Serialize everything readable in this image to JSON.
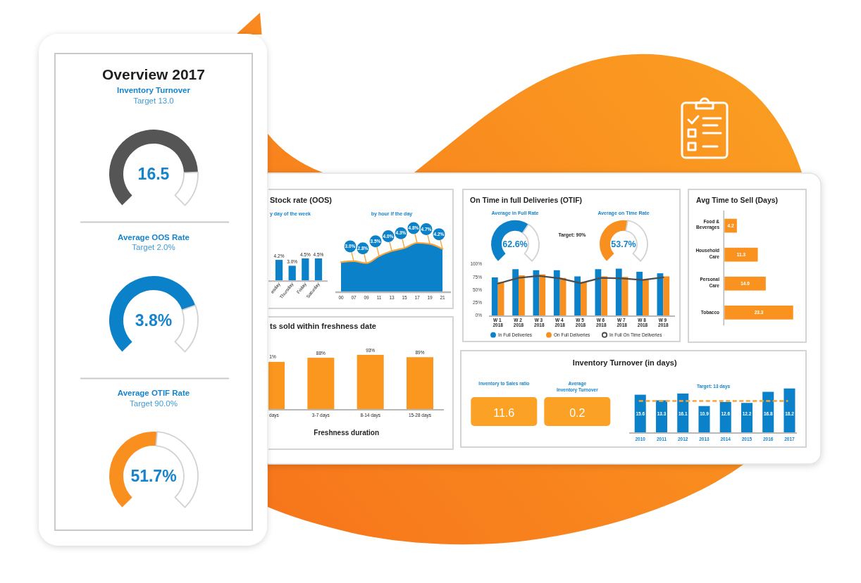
{
  "chart_data": [
    {
      "type": "other",
      "title": "Overview 2017"
    },
    {
      "type": "donut",
      "title": "Inventory Turnover",
      "subtitle": "Target 13.0",
      "categories": [
        null,
        null
      ],
      "values": [
        82.5,
        17.5
      ],
      "colors": [
        "#555555",
        "#d2d2d2"
      ],
      "annotations": [
        "16.5"
      ]
    },
    {
      "type": "donut",
      "title": "Average OOS Rate",
      "subtitle": "Target 2.0%",
      "categories": [
        null,
        null
      ],
      "values": [
        76,
        24
      ],
      "colors": [
        "#0b81c9",
        "#d2d2d2"
      ],
      "annotations": [
        "3.8%"
      ]
    },
    {
      "type": "donut",
      "title": "Average OTIF Rate",
      "subtitle": "Target 90.0%",
      "categories": [
        null,
        null
      ],
      "values": [
        51.7,
        48.3
      ],
      "colors": [
        "#f98f1f",
        "#d2d2d2"
      ],
      "annotations": [
        "51.7%"
      ]
    },
    {
      "type": "bar",
      "title": "Stock rate (OOS)",
      "subtitle": "y day of the week",
      "categories": [
        "esday",
        "Thursday",
        "Friday",
        "Saturday"
      ],
      "values": [
        4.2,
        3.0,
        4.5,
        4.5
      ],
      "value_labels": [
        "4.2%",
        "3.0%",
        "4.5%",
        "4.5%"
      ],
      "color": "#0b81c9"
    },
    {
      "type": "area",
      "title": "by hour if the day",
      "categories": [
        "00",
        "07",
        "09",
        "11",
        "13",
        "15",
        "17",
        "19",
        "21"
      ],
      "series": [
        {
          "type": "area",
          "color": "#0b81c9",
          "values": [
            2.9,
            3.0,
            2.8,
            3.5,
            4.0,
            4.3,
            4.8,
            4.7,
            4.2
          ]
        },
        {
          "type": "line",
          "color": "#f9a43a",
          "values": [
            2.9,
            3.0,
            2.8,
            3.5,
            4.0,
            4.3,
            4.8,
            4.7,
            4.2
          ],
          "value_labels": [
            null,
            "3.0%",
            "2.8%",
            "3.5%",
            "4.0%",
            "4.3%",
            "4.8%",
            "4.7%",
            "4.2%"
          ]
        }
      ]
    },
    {
      "type": "donut",
      "title": "On Time in full Deliveries (OTIF)",
      "subtitle": "Average in Full Rate",
      "categories": [
        null,
        null
      ],
      "values": [
        62.6,
        37.4
      ],
      "colors": [
        "#0b81c9",
        "#d2d2d2"
      ],
      "annotations": [
        "62.6%",
        "Target: 90%"
      ]
    },
    {
      "type": "donut",
      "subtitle": "Average on Time Rate",
      "categories": [
        null,
        null
      ],
      "values": [
        53.7,
        46.3
      ],
      "colors": [
        "#f98f1f",
        "#d2d2d2"
      ],
      "annotations": [
        "53.7%"
      ]
    },
    {
      "type": "bar",
      "categories": [
        "W 1 2018",
        "W 2 2018",
        "W 3 2018",
        "W 4 2018",
        "W 5 2018",
        "W 6 2018",
        "W 7 2018",
        "W 8 2018",
        "W 9 2018"
      ],
      "series": [
        {
          "name": "In Full Deliveries",
          "color": "#0b81c9",
          "values": [
            74,
            90,
            88,
            88,
            76,
            90,
            91,
            85,
            82
          ]
        },
        {
          "name": "On Full Deliveries",
          "color": "#f98f1f",
          "values": [
            65,
            78,
            80,
            73,
            65,
            76,
            75,
            70,
            76
          ]
        },
        {
          "name": "In Full On Time Deliveries",
          "type": "line",
          "color": "#4d4d4d",
          "values": [
            62,
            73,
            77,
            72,
            63,
            73,
            72,
            69,
            74
          ]
        }
      ],
      "ylim": [
        0,
        100
      ],
      "yticks": [
        {
          "value": 0,
          "label": "0%"
        },
        {
          "value": 25,
          "label": "25%"
        },
        {
          "value": 50,
          "label": "50%"
        },
        {
          "value": 75,
          "label": "75%"
        },
        {
          "value": 100,
          "label": "100%"
        }
      ],
      "legend": "bottom"
    },
    {
      "type": "bar",
      "orientation": "horizontal",
      "title": "Avg Time to Sell (Days)",
      "categories": [
        "Food & Beverages",
        "Household Care",
        "Personal Care",
        "Tobacco"
      ],
      "values": [
        4.2,
        11.3,
        14.0,
        23.3
      ],
      "value_labels": [
        "4.2",
        "11.3",
        "14.0",
        "23.3"
      ],
      "color": "#fa921f"
    },
    {
      "type": "bar",
      "title": "ts sold within freshness date",
      "xlabel": "Freshness duration",
      "categories": [
        "days",
        "3-7 days",
        "8-14 days",
        "15-28 days"
      ],
      "values": [
        81,
        88,
        93,
        89
      ],
      "value_labels": [
        null,
        "88%",
        "93%",
        "89%"
      ],
      "annotations": [
        "1%"
      ],
      "color": "#fb961f"
    },
    {
      "type": "other",
      "title": "Inventory Turnover (in days)",
      "categories": [
        "Inventory to Sales ratio",
        "Average Inventory Turnover"
      ],
      "values": [
        11.6,
        0.2
      ],
      "data_labels": true,
      "color": "#fba126"
    },
    {
      "type": "bar",
      "categories": [
        "2010",
        "2011",
        "2012",
        "2013",
        "2014",
        "2015",
        "2016",
        "2017"
      ],
      "values": [
        15.6,
        13.3,
        16.1,
        10.9,
        12.6,
        12.2,
        16.8,
        18.2
      ],
      "data_labels": true,
      "color": "#0b81c9",
      "ref_lines": [
        {
          "axis": "y",
          "value": 13,
          "label": "Target: 13 days",
          "color": "#f9a43a",
          "line_style": "dashed"
        }
      ]
    }
  ]
}
